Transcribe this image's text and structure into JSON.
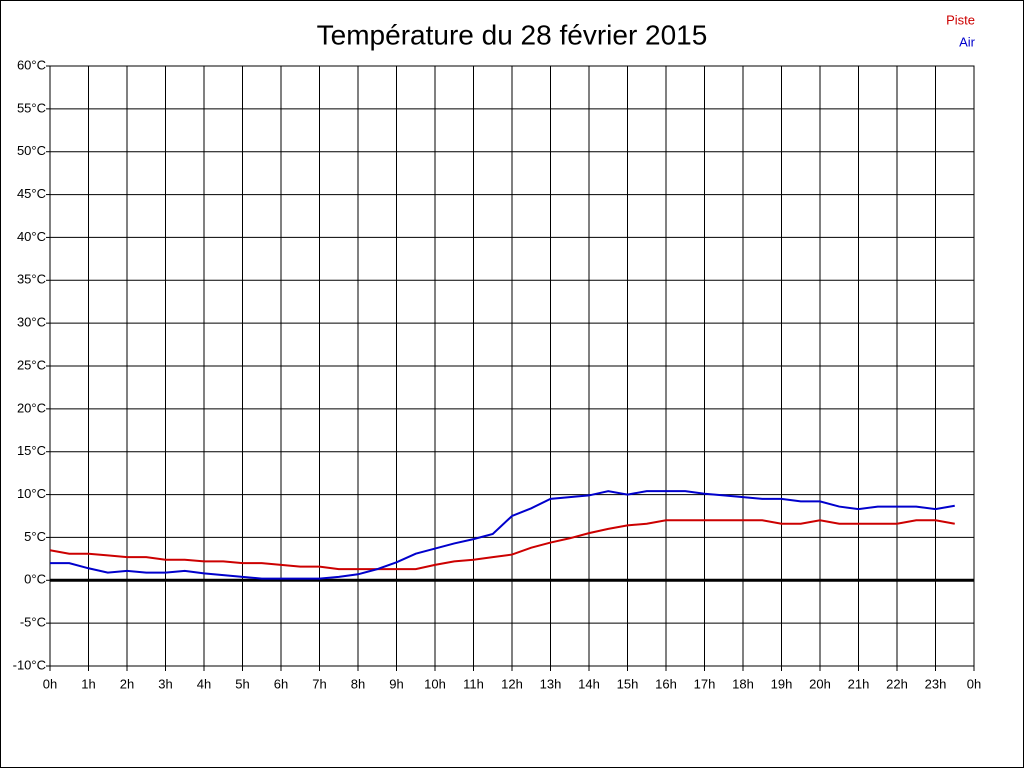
{
  "chart_data": {
    "type": "line",
    "title": "Température du 28 février 2015",
    "x": [
      0,
      0.5,
      1,
      1.5,
      2,
      2.5,
      3,
      3.5,
      4,
      4.5,
      5,
      5.5,
      6,
      6.5,
      7,
      7.5,
      8,
      8.5,
      9,
      9.5,
      10,
      10.5,
      11,
      11.5,
      12,
      12.5,
      13,
      13.5,
      14,
      14.5,
      15,
      15.5,
      16,
      16.5,
      17,
      17.5,
      18,
      18.5,
      19,
      19.5,
      20,
      20.5,
      21,
      21.5,
      22,
      22.5,
      23,
      23.5
    ],
    "series": [
      {
        "name": "Piste",
        "color": "#cc0000",
        "values": [
          3.5,
          3.1,
          3.1,
          2.9,
          2.7,
          2.7,
          2.4,
          2.4,
          2.2,
          2.2,
          2.0,
          2.0,
          1.8,
          1.6,
          1.6,
          1.3,
          1.3,
          1.3,
          1.3,
          1.3,
          1.8,
          2.2,
          2.4,
          2.7,
          3.0,
          3.8,
          4.4,
          4.9,
          5.5,
          6.0,
          6.4,
          6.6,
          7.0,
          7.0,
          7.0,
          7.0,
          7.0,
          7.0,
          6.6,
          6.6,
          7.0,
          6.6,
          6.6,
          6.6,
          6.6,
          7.0,
          7.0,
          6.6
        ]
      },
      {
        "name": "Air",
        "color": "#0000cc",
        "values": [
          2.0,
          2.0,
          1.4,
          0.9,
          1.1,
          0.9,
          0.9,
          1.1,
          0.8,
          0.6,
          0.4,
          0.2,
          0.2,
          0.2,
          0.2,
          0.4,
          0.7,
          1.3,
          2.1,
          3.1,
          3.7,
          4.3,
          4.8,
          5.4,
          7.5,
          8.4,
          9.5,
          9.7,
          9.9,
          10.4,
          10.0,
          10.4,
          10.4,
          10.4,
          10.1,
          9.9,
          9.7,
          9.5,
          9.5,
          9.2,
          9.2,
          8.6,
          8.3,
          8.6,
          8.6,
          8.6,
          8.3,
          8.7
        ]
      }
    ],
    "xlim": [
      0,
      24
    ],
    "xticks": [
      {
        "value": 0,
        "label": "0h"
      },
      {
        "value": 1,
        "label": "1h"
      },
      {
        "value": 2,
        "label": "2h"
      },
      {
        "value": 3,
        "label": "3h"
      },
      {
        "value": 4,
        "label": "4h"
      },
      {
        "value": 5,
        "label": "5h"
      },
      {
        "value": 6,
        "label": "6h"
      },
      {
        "value": 7,
        "label": "7h"
      },
      {
        "value": 8,
        "label": "8h"
      },
      {
        "value": 9,
        "label": "9h"
      },
      {
        "value": 10,
        "label": "10h"
      },
      {
        "value": 11,
        "label": "11h"
      },
      {
        "value": 12,
        "label": "12h"
      },
      {
        "value": 13,
        "label": "13h"
      },
      {
        "value": 14,
        "label": "14h"
      },
      {
        "value": 15,
        "label": "15h"
      },
      {
        "value": 16,
        "label": "16h"
      },
      {
        "value": 17,
        "label": "17h"
      },
      {
        "value": 18,
        "label": "18h"
      },
      {
        "value": 19,
        "label": "19h"
      },
      {
        "value": 20,
        "label": "20h"
      },
      {
        "value": 21,
        "label": "21h"
      },
      {
        "value": 22,
        "label": "22h"
      },
      {
        "value": 23,
        "label": "23h"
      },
      {
        "value": 24,
        "label": "0h"
      }
    ],
    "ylim": [
      -10,
      60
    ],
    "yticks": [
      {
        "value": -10,
        "label": "-10°C"
      },
      {
        "value": -5,
        "label": "-5°C"
      },
      {
        "value": 0,
        "label": "0°C"
      },
      {
        "value": 5,
        "label": "5°C"
      },
      {
        "value": 10,
        "label": "10°C"
      },
      {
        "value": 15,
        "label": "15°C"
      },
      {
        "value": 20,
        "label": "20°C"
      },
      {
        "value": 25,
        "label": "25°C"
      },
      {
        "value": 30,
        "label": "30°C"
      },
      {
        "value": 35,
        "label": "35°C"
      },
      {
        "value": 40,
        "label": "40°C"
      },
      {
        "value": 45,
        "label": "45°C"
      },
      {
        "value": 50,
        "label": "50°C"
      },
      {
        "value": 55,
        "label": "55°C"
      },
      {
        "value": 60,
        "label": "60°C"
      }
    ],
    "grid": true,
    "zero_line": true,
    "legend": "top-right"
  }
}
